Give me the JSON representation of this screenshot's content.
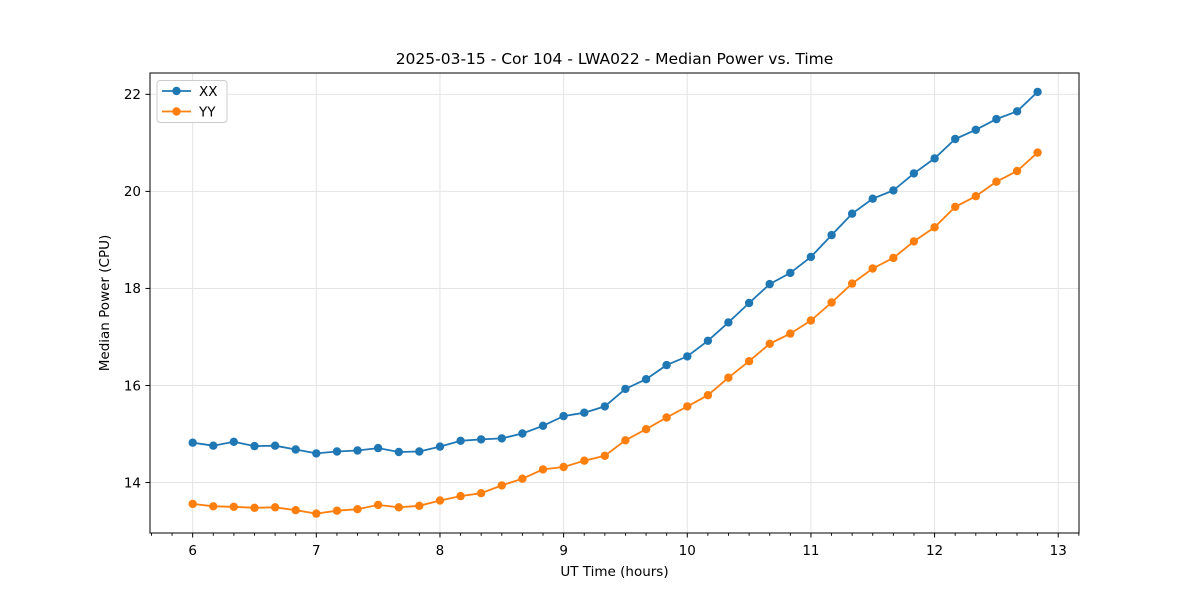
{
  "figure": {
    "background": "#ffffff"
  },
  "chart_data": {
    "type": "line",
    "title": "2025-03-15 - Cor 104 - LWA022 - Median Power vs. Time",
    "xlabel": "UT Time (hours)",
    "ylabel": "Median Power (CPU)",
    "xlim": [
      5.655,
      13.168
    ],
    "ylim": [
      12.96,
      22.44
    ],
    "x_ticks": [
      6,
      7,
      8,
      9,
      10,
      11,
      12,
      13
    ],
    "y_ticks": [
      14,
      16,
      18,
      20,
      22
    ],
    "x_minor_tick_step": 0.1666667,
    "grid": true,
    "grid_color": "#e4e4e4",
    "axis_color": "#000000",
    "legend": {
      "position": "upper-left",
      "border_color": "#cccccc",
      "background": "#ffffff"
    },
    "x": [
      6.0,
      6.167,
      6.333,
      6.5,
      6.667,
      6.833,
      7.0,
      7.167,
      7.333,
      7.5,
      7.667,
      7.833,
      8.0,
      8.167,
      8.333,
      8.5,
      8.667,
      8.833,
      9.0,
      9.167,
      9.333,
      9.5,
      9.667,
      9.833,
      10.0,
      10.167,
      10.333,
      10.5,
      10.667,
      10.833,
      11.0,
      11.167,
      11.333,
      11.5,
      11.667,
      11.833,
      12.0,
      12.167,
      12.333,
      12.5,
      12.667,
      12.833
    ],
    "series": [
      {
        "name": "XX",
        "color": "#1f77b4",
        "marker": "circle",
        "values": [
          14.82,
          14.76,
          14.84,
          14.75,
          14.76,
          14.68,
          14.6,
          14.64,
          14.66,
          14.71,
          14.63,
          14.64,
          14.74,
          14.86,
          14.89,
          14.91,
          15.01,
          15.17,
          15.37,
          15.44,
          15.57,
          15.93,
          16.13,
          16.42,
          16.6,
          16.92,
          17.3,
          17.7,
          18.09,
          18.32,
          18.65,
          19.1,
          19.54,
          19.85,
          20.02,
          20.37,
          20.68,
          21.08,
          21.27,
          21.49,
          21.65,
          22.05
        ]
      },
      {
        "name": "YY",
        "color": "#ff7f0e",
        "marker": "circle",
        "values": [
          13.56,
          13.51,
          13.5,
          13.48,
          13.49,
          13.43,
          13.36,
          13.42,
          13.45,
          13.54,
          13.49,
          13.52,
          13.63,
          13.72,
          13.78,
          13.94,
          14.08,
          14.27,
          14.32,
          14.45,
          14.55,
          14.87,
          15.1,
          15.34,
          15.57,
          15.8,
          16.16,
          16.5,
          16.86,
          17.07,
          17.34,
          17.71,
          18.1,
          18.41,
          18.63,
          18.97,
          19.26,
          19.68,
          19.9,
          20.2,
          20.42,
          20.8
        ]
      }
    ]
  }
}
